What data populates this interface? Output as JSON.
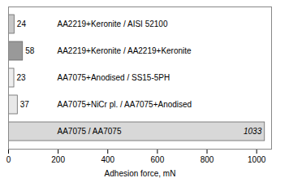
{
  "chart_data": {
    "type": "bar",
    "orientation": "horizontal",
    "categories": [
      "AA2219+Keronite / AISI 52100",
      "AA2219+Keronite / AA2219+Keronite",
      "AA7075+Anodised / SS15-5PH",
      "AA7075+NiCr pl. / AA7075+Anodised",
      "AA7075 / AA7075"
    ],
    "values": [
      24,
      58,
      23,
      37,
      1033
    ],
    "colors": [
      "#c8c8c8",
      "#999999",
      "#eeeeee",
      "#e8e8e8",
      "#d8d8d8"
    ],
    "xlabel": "Adhesion force, mN",
    "xlim": [
      0,
      1060
    ],
    "xticks": [
      0,
      200,
      400,
      600,
      800,
      1000
    ],
    "data_labels": true,
    "tick_labels": "x",
    "grid": false
  }
}
